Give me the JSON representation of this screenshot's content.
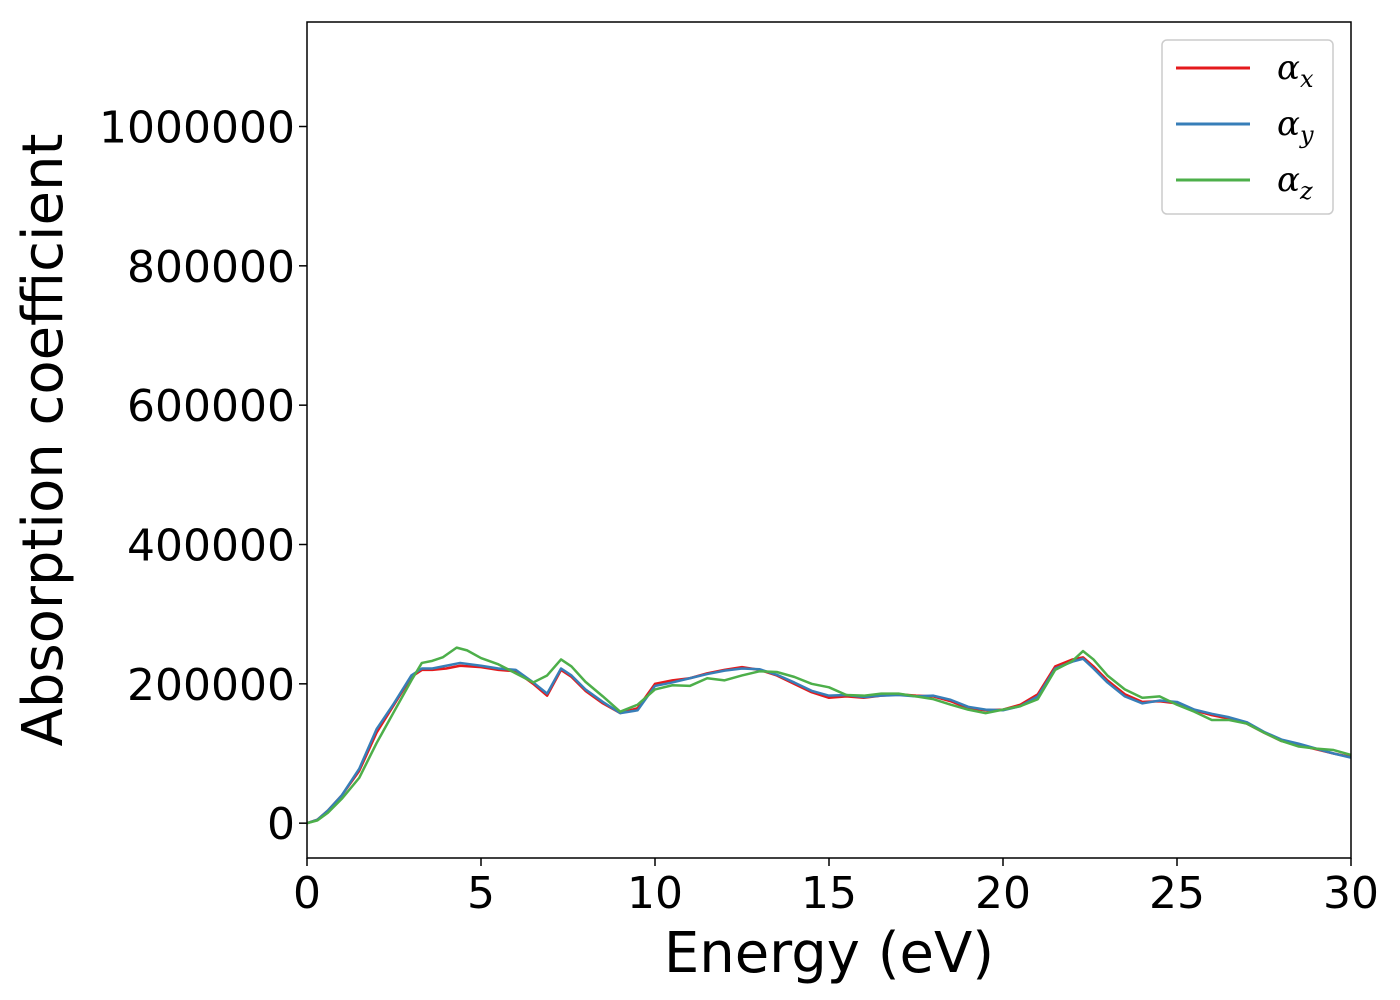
{
  "chart_data": {
    "type": "line",
    "title": "",
    "xlabel": "Energy (eV)",
    "ylabel": "Absorption coefficient",
    "xlim": [
      0,
      30
    ],
    "ylim": [
      -50000,
      1150000
    ],
    "xticks": [
      0,
      5,
      10,
      15,
      20,
      25,
      30
    ],
    "xtick_labels": [
      "0",
      "5",
      "10",
      "15",
      "20",
      "25",
      "30"
    ],
    "yticks": [
      0,
      200000,
      400000,
      600000,
      800000,
      1000000
    ],
    "ytick_labels": [
      "0",
      "200000",
      "400000",
      "600000",
      "800000",
      "1000000"
    ],
    "grid": false,
    "legend_position": "top-right",
    "series": [
      {
        "name": "α_x",
        "symbol": "α",
        "subscript": "x",
        "color": "#e41a1c",
        "x": [
          0,
          0.3,
          0.6,
          1,
          1.5,
          2,
          2.5,
          3,
          3.3,
          3.6,
          4,
          4.4,
          5,
          5.5,
          6,
          6.5,
          6.9,
          7.3,
          7.6,
          8,
          8.5,
          9,
          9.5,
          10,
          10.5,
          11,
          11.5,
          12,
          12.5,
          13,
          13.5,
          14,
          14.5,
          15,
          15.5,
          16,
          16.5,
          17,
          17.5,
          18,
          18.5,
          19,
          19.5,
          20,
          20.5,
          21,
          21.5,
          22,
          22.3,
          22.6,
          23,
          23.5,
          24,
          24.5,
          25,
          25.5,
          26,
          26.5,
          27,
          27.5,
          28,
          28.5,
          29,
          29.5,
          30
        ],
        "y": [
          0,
          5000,
          18000,
          40000,
          75000,
          130000,
          170000,
          210000,
          220000,
          220000,
          222000,
          226000,
          224000,
          220000,
          218000,
          200000,
          183000,
          220000,
          210000,
          190000,
          172000,
          158000,
          165000,
          200000,
          205000,
          208000,
          215000,
          220000,
          224000,
          220000,
          212000,
          200000,
          188000,
          180000,
          182000,
          180000,
          183000,
          185000,
          183000,
          182000,
          175000,
          165000,
          162000,
          163000,
          170000,
          185000,
          225000,
          235000,
          238000,
          225000,
          205000,
          185000,
          174000,
          175000,
          172000,
          162000,
          155000,
          150000,
          143000,
          130000,
          118000,
          112000,
          106000,
          100000,
          95000
        ]
      },
      {
        "name": "α_y",
        "symbol": "α",
        "subscript": "y",
        "color": "#377eb8",
        "x": [
          0,
          0.3,
          0.6,
          1,
          1.5,
          2,
          2.5,
          3,
          3.3,
          3.6,
          4,
          4.4,
          5,
          5.5,
          6,
          6.5,
          6.9,
          7.3,
          7.6,
          8,
          8.5,
          9,
          9.5,
          10,
          10.5,
          11,
          11.5,
          12,
          12.5,
          13,
          13.5,
          14,
          14.5,
          15,
          15.5,
          16,
          16.5,
          17,
          17.5,
          18,
          18.5,
          19,
          19.5,
          20,
          20.5,
          21,
          21.5,
          22,
          22.3,
          22.6,
          23,
          23.5,
          24,
          24.5,
          25,
          25.5,
          26,
          26.5,
          27,
          27.5,
          28,
          28.5,
          29,
          29.5,
          30
        ],
        "y": [
          0,
          5000,
          18000,
          40000,
          78000,
          135000,
          172000,
          212000,
          222000,
          222000,
          226000,
          230000,
          226000,
          222000,
          220000,
          202000,
          186000,
          222000,
          212000,
          192000,
          174000,
          158000,
          162000,
          197000,
          202000,
          208000,
          214000,
          219000,
          222000,
          221000,
          213000,
          202000,
          190000,
          183000,
          184000,
          181000,
          183000,
          184000,
          182000,
          183000,
          177000,
          167000,
          163000,
          162000,
          168000,
          182000,
          222000,
          232000,
          236000,
          222000,
          202000,
          182000,
          172000,
          176000,
          174000,
          163000,
          157000,
          152000,
          145000,
          131000,
          120000,
          114000,
          107000,
          100000,
          94000
        ]
      },
      {
        "name": "α_z",
        "symbol": "α",
        "subscript": "z",
        "color": "#4daf4a",
        "x": [
          0,
          0.3,
          0.6,
          1,
          1.5,
          2,
          2.5,
          3,
          3.3,
          3.6,
          3.9,
          4.3,
          4.6,
          5,
          5.5,
          6,
          6.5,
          6.9,
          7.3,
          7.6,
          8,
          8.5,
          9,
          9.5,
          10,
          10.5,
          11,
          11.5,
          12,
          12.5,
          13,
          13.5,
          14,
          14.5,
          15,
          15.5,
          16,
          16.5,
          17,
          17.5,
          18,
          18.5,
          19,
          19.5,
          20,
          20.5,
          21,
          21.5,
          22,
          22.3,
          22.6,
          23,
          23.5,
          24,
          24.5,
          25,
          25.5,
          26,
          26.5,
          27,
          27.5,
          28,
          28.5,
          29,
          29.5,
          30
        ],
        "y": [
          0,
          4000,
          15000,
          35000,
          65000,
          115000,
          160000,
          205000,
          230000,
          233000,
          238000,
          252000,
          248000,
          237000,
          228000,
          215000,
          202000,
          212000,
          235000,
          225000,
          203000,
          182000,
          160000,
          170000,
          192000,
          198000,
          197000,
          208000,
          205000,
          212000,
          218000,
          217000,
          210000,
          200000,
          195000,
          184000,
          183000,
          186000,
          186000,
          182000,
          178000,
          170000,
          163000,
          158000,
          163000,
          168000,
          178000,
          220000,
          233000,
          247000,
          235000,
          212000,
          192000,
          180000,
          182000,
          170000,
          160000,
          148000,
          148000,
          143000,
          130000,
          118000,
          110000,
          107000,
          105000,
          98000
        ]
      }
    ]
  }
}
